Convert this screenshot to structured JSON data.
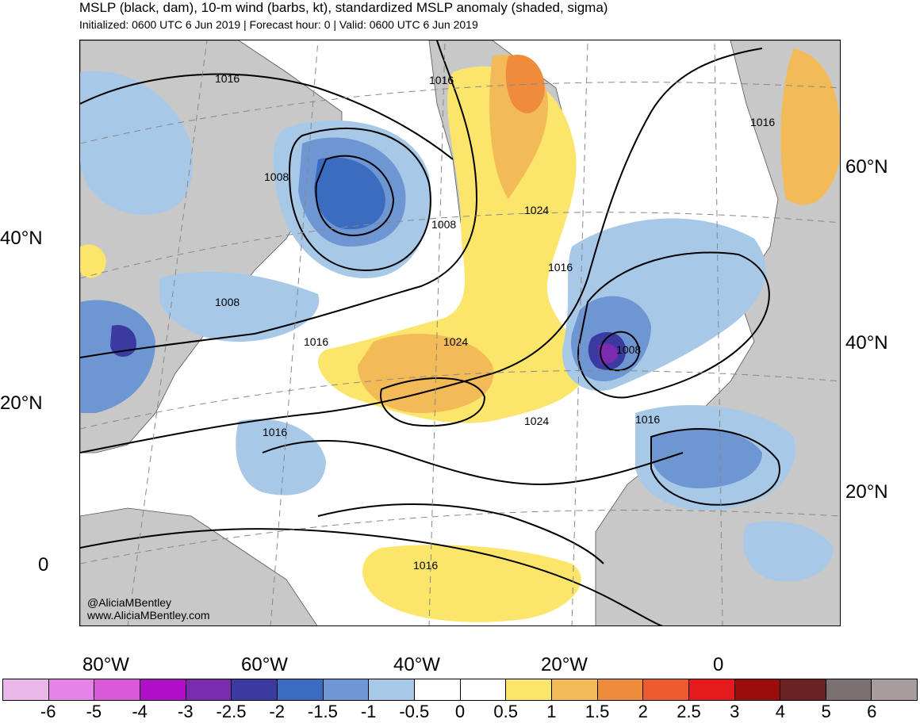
{
  "header": {
    "title": "MSLP (black, dam), 10-m wind (barbs, kt), standardized MSLP anomaly (shaded, sigma)",
    "subtitle": "Initialized: 0600 UTC 6 Jun 2019 | Forecast hour: 0 | Valid: 0600 UTC 6 Jun 2019"
  },
  "map": {
    "left_lat_labels": [
      "40°N",
      "20°N",
      "0"
    ],
    "right_lat_labels": [
      "60°N",
      "40°N",
      "20°N"
    ],
    "bottom_lon_labels": [
      "80°W",
      "60°W",
      "40°W",
      "20°W",
      "0"
    ],
    "isobar_labels": [
      "1016",
      "1016",
      "1016",
      "1008",
      "1008",
      "1024",
      "1016",
      "1008",
      "1016",
      "1024",
      "1024",
      "1008",
      "1016",
      "1016",
      "1016"
    ],
    "land_color": "#c8c8c8",
    "credit_handle": "@AliciaMBentley",
    "credit_url": "www.AliciaMBentley.com"
  },
  "colorbar": {
    "colors": [
      "#e9b8e9",
      "#e683e6",
      "#d957d9",
      "#b010c8",
      "#7a2bb0",
      "#3a3aa0",
      "#3a6cc0",
      "#6e96d2",
      "#a8c8e8",
      "#ffffff",
      "#ffffff",
      "#fbe56a",
      "#f3bb57",
      "#ef8c3c",
      "#ee5a30",
      "#e41a1c",
      "#9c0c0c",
      "#6b2222",
      "#7a7070",
      "#a89d9d"
    ],
    "tick_labels": [
      "-6",
      "-5",
      "-4",
      "-3",
      "-2.5",
      "-2",
      "-1.5",
      "-1",
      "-0.5",
      "0",
      "0.5",
      "1",
      "1.5",
      "2",
      "2.5",
      "3",
      "4",
      "5",
      "6"
    ]
  }
}
